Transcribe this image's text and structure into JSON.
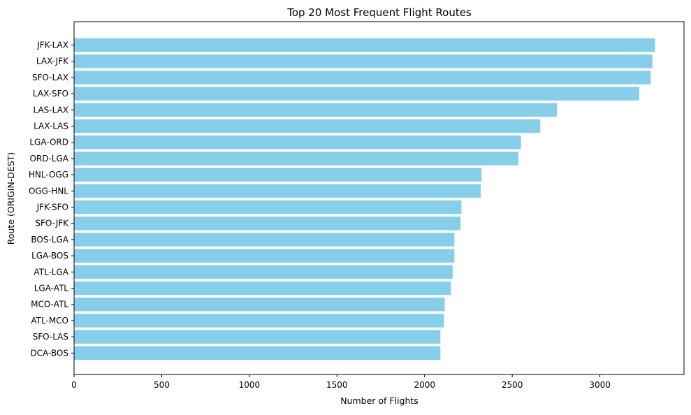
{
  "chart_data": {
    "type": "bar",
    "orientation": "horizontal",
    "title": "Top 20 Most Frequent Flight Routes",
    "xlabel": "Number of Flights",
    "ylabel": "Route (ORIGIN-DEST)",
    "xlim": [
      0,
      3480
    ],
    "xticks": [
      0,
      500,
      1000,
      1500,
      2000,
      2500,
      3000
    ],
    "grid": false,
    "bar_color": "#87ceeb",
    "categories": [
      "JFK-LAX",
      "LAX-JFK",
      "SFO-LAX",
      "LAX-SFO",
      "LAS-LAX",
      "LAX-LAS",
      "LGA-ORD",
      "ORD-LGA",
      "HNL-OGG",
      "OGG-HNL",
      "JFK-SFO",
      "SFO-JFK",
      "BOS-LGA",
      "LGA-BOS",
      "ATL-LGA",
      "LGA-ATL",
      "MCO-ATL",
      "ATL-MCO",
      "SFO-LAS",
      "DCA-BOS"
    ],
    "values": [
      3315,
      3300,
      3290,
      3225,
      2755,
      2660,
      2550,
      2535,
      2325,
      2320,
      2210,
      2205,
      2170,
      2170,
      2160,
      2150,
      2115,
      2110,
      2090,
      2090
    ]
  }
}
